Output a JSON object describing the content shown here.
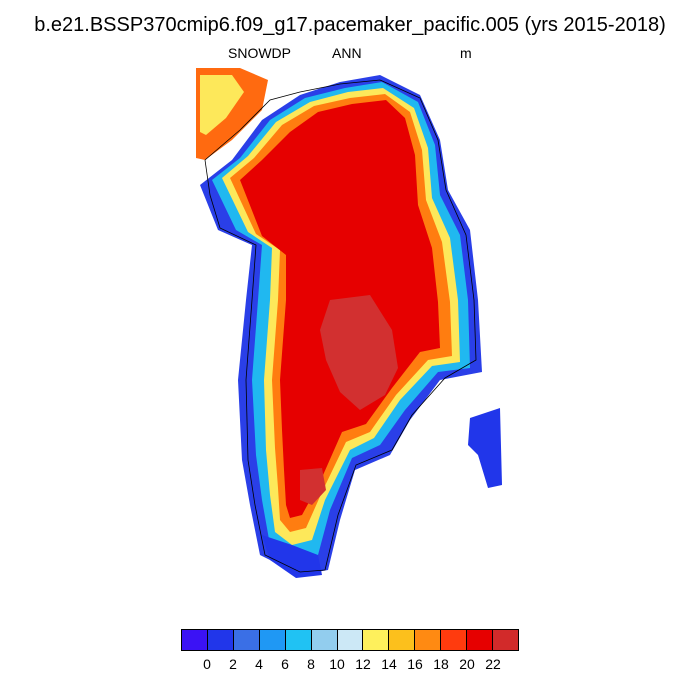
{
  "title": "b.e21.BSSP370cmip6.f09_g17.pacemaker_pacific.005 (yrs 2015-2018)",
  "subtitles": {
    "variable": "SNOWDP",
    "season": "ANN",
    "units": "m"
  },
  "colorbar": {
    "colors": [
      "#3b12f5",
      "#2136ea",
      "#3a6fe6",
      "#1f98f4",
      "#20c2f3",
      "#92cdee",
      "#cce8f6",
      "#fef05c",
      "#fcc01c",
      "#ff8a12",
      "#ff3b0e",
      "#e60000",
      "#d22a2a"
    ],
    "tick_labels": [
      "0",
      "2",
      "4",
      "6",
      "8",
      "10",
      "12",
      "14",
      "16",
      "18",
      "20",
      "22"
    ]
  },
  "map": {
    "region": "Greenland",
    "description_levels": "gridded annual mean snow depth; interior dominated by the highest levels (>20 m), coastal margins at low levels (0-6 m)"
  }
}
